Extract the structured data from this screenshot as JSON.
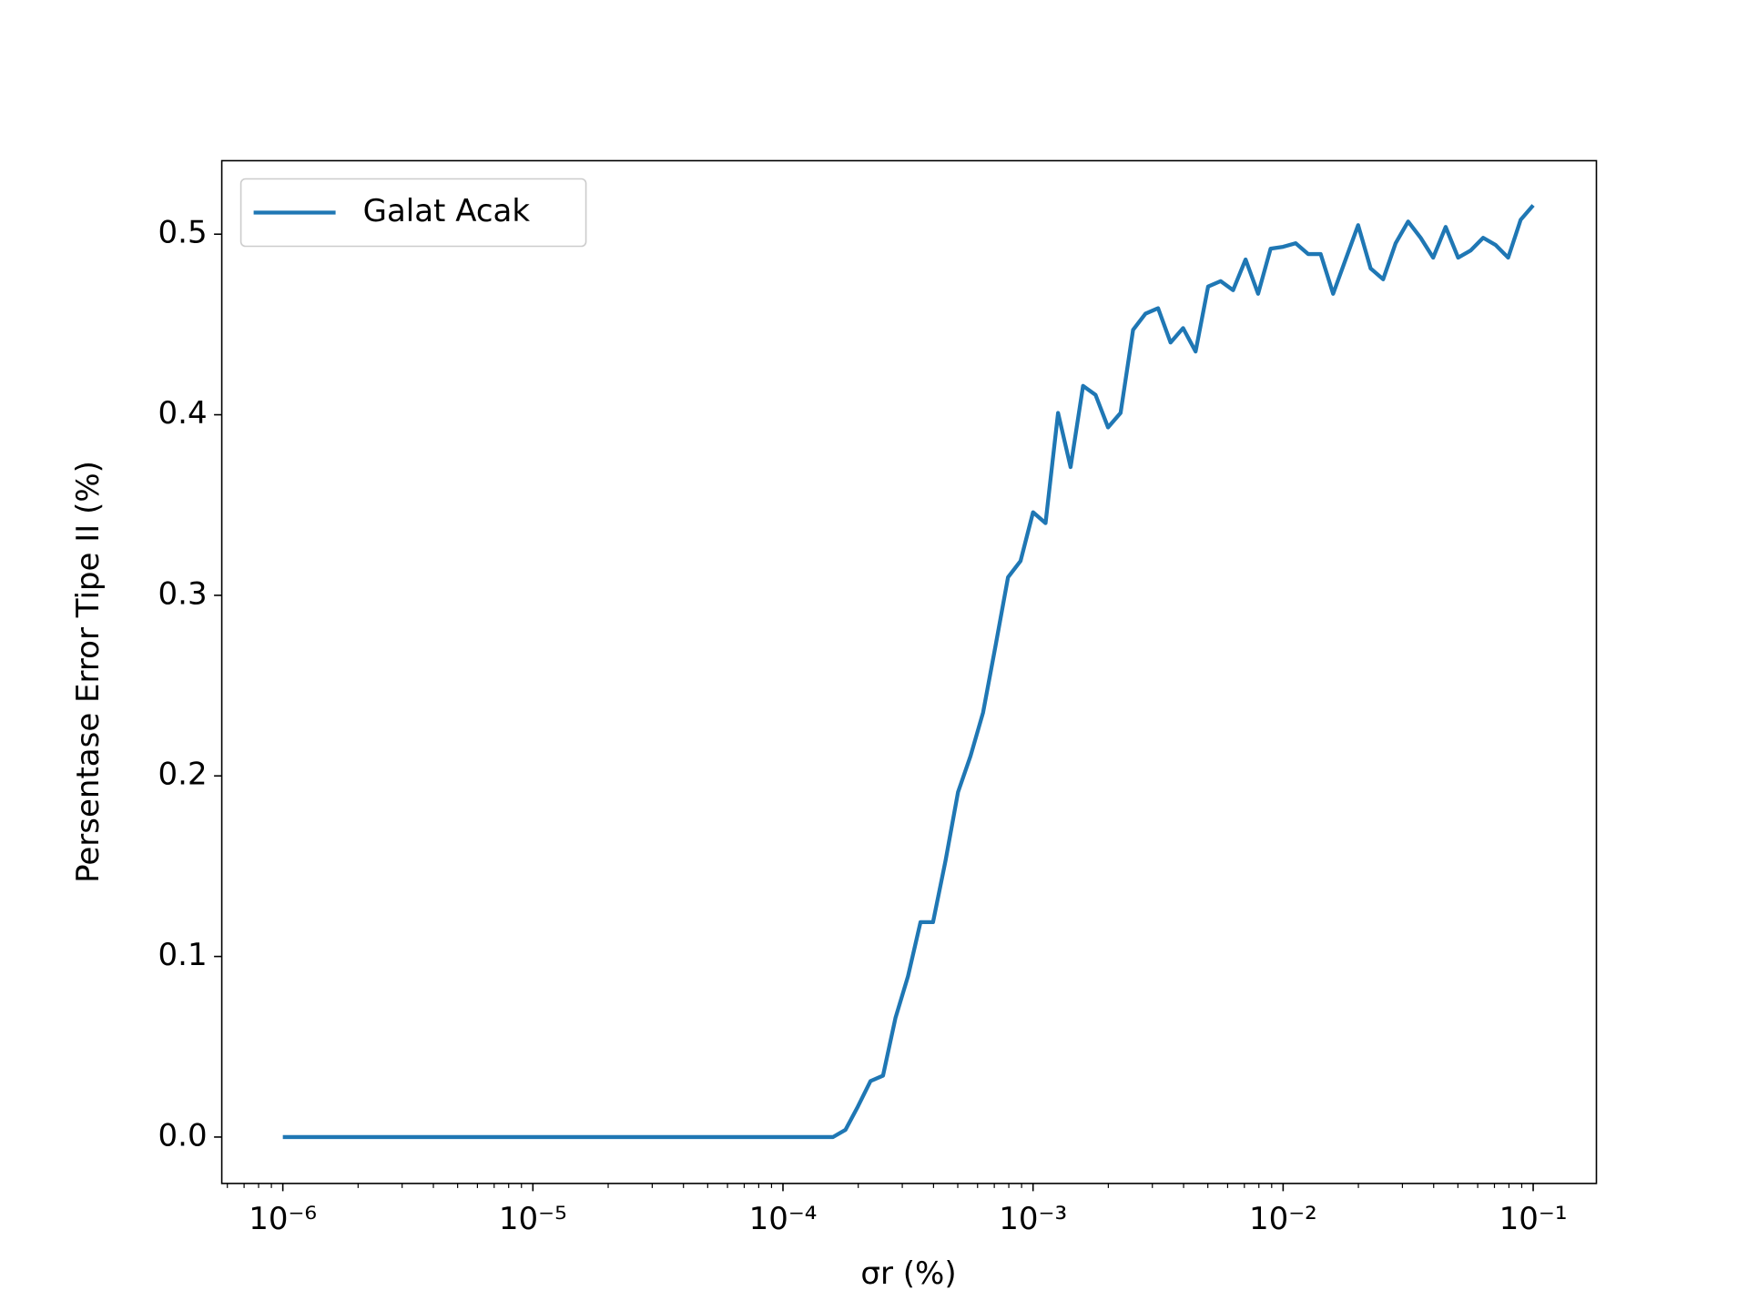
{
  "chart_data": {
    "type": "line",
    "xlabel": "σr (%)",
    "ylabel": "Persentase Error Tipe II (%)",
    "x": [
      1e-06,
      0.0001585,
      0.0001778,
      0.0001995,
      0.0002239,
      0.0002512,
      0.0002818,
      0.0003162,
      0.0003548,
      0.0003981,
      0.0004467,
      0.0005012,
      0.0005623,
      0.000631,
      0.0007079,
      0.0007943,
      0.0008913,
      0.001,
      0.001122,
      0.001259,
      0.001413,
      0.001585,
      0.001778,
      0.001995,
      0.002239,
      0.002512,
      0.002818,
      0.003162,
      0.003548,
      0.003981,
      0.004467,
      0.005012,
      0.005623,
      0.00631,
      0.007079,
      0.007943,
      0.008913,
      0.01,
      0.01122,
      0.01259,
      0.01413,
      0.01585,
      0.01778,
      0.01995,
      0.02239,
      0.02512,
      0.02818,
      0.03162,
      0.03548,
      0.03981,
      0.04467,
      0.05012,
      0.05623,
      0.0631,
      0.07079,
      0.07943,
      0.08913,
      0.1
    ],
    "series": [
      {
        "name": "Galat Acak",
        "color": "#1f77b4",
        "values": [
          0,
          0,
          0.004,
          0.017,
          0.031,
          0.034,
          0.066,
          0.089,
          0.119,
          0.119,
          0.153,
          0.191,
          0.211,
          0.235,
          0.272,
          0.31,
          0.319,
          0.346,
          0.34,
          0.401,
          0.371,
          0.416,
          0.411,
          0.393,
          0.401,
          0.447,
          0.456,
          0.459,
          0.44,
          0.448,
          0.435,
          0.471,
          0.474,
          0.469,
          0.486,
          0.467,
          0.492,
          0.493,
          0.495,
          0.489,
          0.489,
          0.467,
          0.486,
          0.505,
          0.481,
          0.475,
          0.495,
          0.507,
          0.498,
          0.487,
          0.504,
          0.487,
          0.491,
          0.498,
          0.494,
          0.487,
          0.508,
          0.516
        ]
      }
    ],
    "xscale": "log",
    "xlim": [
      5.7e-07,
      0.179
    ],
    "xticks": [
      {
        "value": 1e-06,
        "label": "10⁻⁶"
      },
      {
        "value": 1e-05,
        "label": "10⁻⁵"
      },
      {
        "value": 0.0001,
        "label": "10⁻⁴"
      },
      {
        "value": 0.001,
        "label": "10⁻³"
      },
      {
        "value": 0.01,
        "label": "10⁻²"
      },
      {
        "value": 0.1,
        "label": "10⁻¹"
      }
    ],
    "x_minor_ticks": true,
    "ylim": [
      -0.0257,
      0.5407
    ],
    "yticks": [
      {
        "value": 0,
        "label": "0.0"
      },
      0.1,
      0.2,
      0.3,
      0.4,
      0.5
    ],
    "legend": "upper left"
  }
}
